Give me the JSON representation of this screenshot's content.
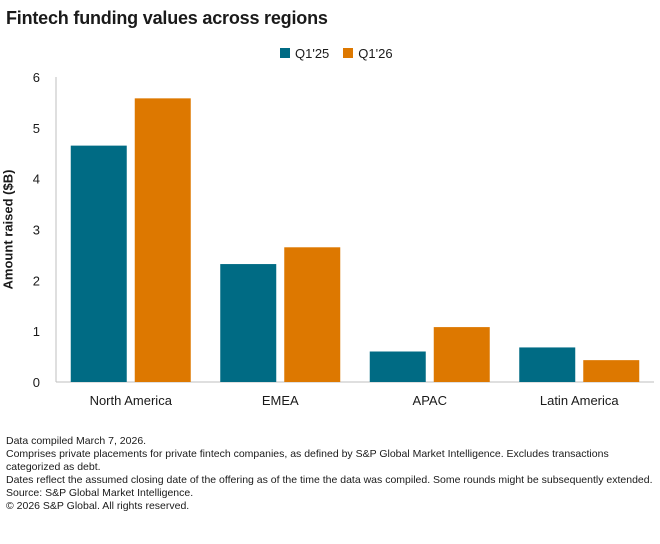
{
  "title": "Fintech funding values across regions",
  "colors": {
    "q125": "#006b84",
    "q126": "#dd7800",
    "axis": "#bfbfbf",
    "text": "#1a1a1a"
  },
  "chart_data": {
    "type": "bar",
    "title": "Fintech funding values across regions",
    "xlabel": "",
    "ylabel": "Amount raised ($B)",
    "ylim": [
      0,
      6
    ],
    "yticks": [
      0,
      1,
      2,
      3,
      4,
      5,
      6
    ],
    "grid": false,
    "legend_position": "top-center",
    "categories": [
      "North America",
      "EMEA",
      "APAC",
      "Latin America"
    ],
    "series": [
      {
        "name": "Q1'25",
        "color": "#006b84",
        "values": [
          4.65,
          2.32,
          0.6,
          0.68
        ]
      },
      {
        "name": "Q1'26",
        "color": "#dd7800",
        "values": [
          5.58,
          2.65,
          1.08,
          0.43
        ]
      }
    ]
  },
  "notes": [
    "Data compiled March 7, 2026.",
    "Comprises private placements for private fintech companies, as defined by S&P Global Market Intelligence. Excludes transactions categorized as debt.",
    "Dates reflect the assumed closing date of the offering as of the time the data was compiled. Some rounds might be subsequently extended.",
    "Source: S&P Global Market Intelligence.",
    "© 2026 S&P Global. All rights reserved."
  ]
}
